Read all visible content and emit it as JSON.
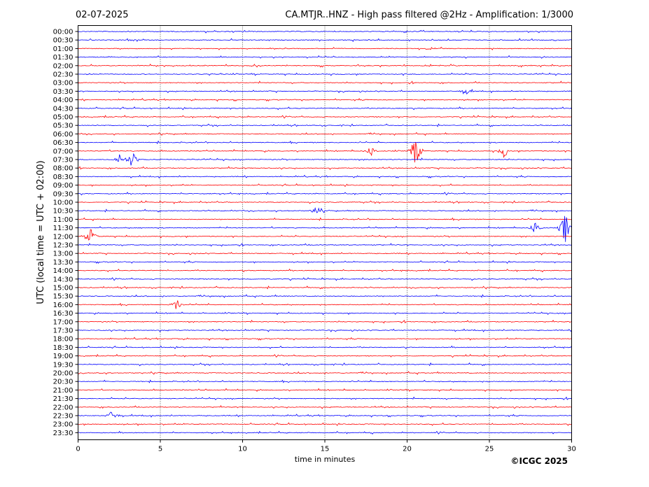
{
  "header": {
    "date": "02-07-2025",
    "title": "CA.MTJR..HNZ - High pass filtered @2Hz - Amplification: 1/3000"
  },
  "copyright": "©ICGC 2025",
  "chart_data": {
    "type": "line",
    "title": "CA.MTJR..HNZ - High pass filtered @2Hz - Amplification: 1/3000",
    "xlabel": "time in minutes",
    "ylabel": "UTC (local time = UTC + 02:00)",
    "xlim": [
      0,
      30
    ],
    "xticks": [
      "0",
      "5",
      "10",
      "15",
      "20",
      "25",
      "30"
    ],
    "grid": "vertical dotted lines at every 5 minutes",
    "colors": {
      "blue": "#0000ff",
      "red": "#ff0000"
    },
    "row_colors": [
      "blue",
      "blue",
      "red",
      "blue",
      "red",
      "blue",
      "red",
      "blue",
      "red",
      "blue",
      "red",
      "blue",
      "red",
      "blue",
      "red",
      "blue",
      "red",
      "blue",
      "red",
      "blue",
      "red",
      "blue",
      "red",
      "blue",
      "red",
      "blue",
      "red",
      "blue",
      "red",
      "blue",
      "red",
      "blue",
      "red",
      "blue",
      "red",
      "blue",
      "red",
      "blue",
      "red",
      "blue",
      "red",
      "blue",
      "red",
      "blue",
      "red",
      "blue",
      "red",
      "blue"
    ],
    "rows": [
      "00:00",
      "00:30",
      "01:00",
      "01:30",
      "02:00",
      "02:30",
      "03:00",
      "03:30",
      "04:00",
      "04:30",
      "05:00",
      "05:30",
      "06:00",
      "06:30",
      "07:00",
      "07:30",
      "08:00",
      "08:30",
      "09:00",
      "09:30",
      "10:00",
      "10:30",
      "11:00",
      "11:30",
      "12:00",
      "12:30",
      "13:00",
      "13:30",
      "14:00",
      "14:30",
      "15:00",
      "15:30",
      "16:00",
      "16:30",
      "17:00",
      "17:30",
      "18:00",
      "18:30",
      "19:00",
      "19:30",
      "20:00",
      "20:30",
      "21:00",
      "21:30",
      "22:00",
      "22:30",
      "23:00",
      "23:30"
    ],
    "events": [
      {
        "row": "07:00",
        "minute": 20.5,
        "amplitude": 1.0
      },
      {
        "row": "07:00",
        "minute": 17.8,
        "amplitude": 0.3
      },
      {
        "row": "07:00",
        "minute": 25.9,
        "amplitude": 0.4
      },
      {
        "row": "07:30",
        "minute": 3.3,
        "amplitude": 0.5
      },
      {
        "row": "07:30",
        "minute": 2.5,
        "amplitude": 0.3
      },
      {
        "row": "11:30",
        "minute": 29.6,
        "amplitude": 1.0
      },
      {
        "row": "11:30",
        "minute": 27.8,
        "amplitude": 0.4
      },
      {
        "row": "12:00",
        "minute": 0.8,
        "amplitude": 0.5
      },
      {
        "row": "10:30",
        "minute": 14.5,
        "amplitude": 0.3
      },
      {
        "row": "16:00",
        "minute": 6.0,
        "amplitude": 0.35
      },
      {
        "row": "22:30",
        "minute": 2.1,
        "amplitude": 0.35
      },
      {
        "row": "03:30",
        "minute": 23.6,
        "amplitude": 0.2
      }
    ]
  }
}
